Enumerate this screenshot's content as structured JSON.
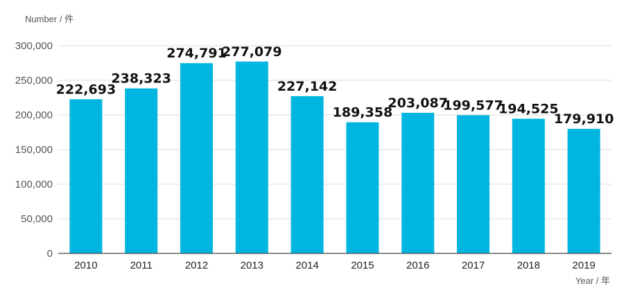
{
  "chart_data": {
    "type": "bar",
    "ylabel": "Number / 件",
    "xlabel": "Year / 年",
    "categories": [
      "2010",
      "2011",
      "2012",
      "2013",
      "2014",
      "2015",
      "2016",
      "2017",
      "2018",
      "2019"
    ],
    "values": [
      222693,
      238323,
      274791,
      277079,
      227142,
      189358,
      203087,
      199577,
      194525,
      179910
    ],
    "value_labels": [
      "222,693",
      "238,323",
      "274,791",
      "277,079",
      "227,142",
      "189,358",
      "203,087",
      "199,577",
      "194,525",
      "179,910"
    ],
    "ylim": [
      0,
      300000
    ],
    "yticks": [
      0,
      50000,
      100000,
      150000,
      200000,
      250000,
      300000
    ],
    "ytick_labels": [
      "0",
      "50,000",
      "100,000",
      "150,000",
      "200,000",
      "250,000",
      "300,000"
    ],
    "grid": true,
    "bar_color": "#00b5df"
  }
}
